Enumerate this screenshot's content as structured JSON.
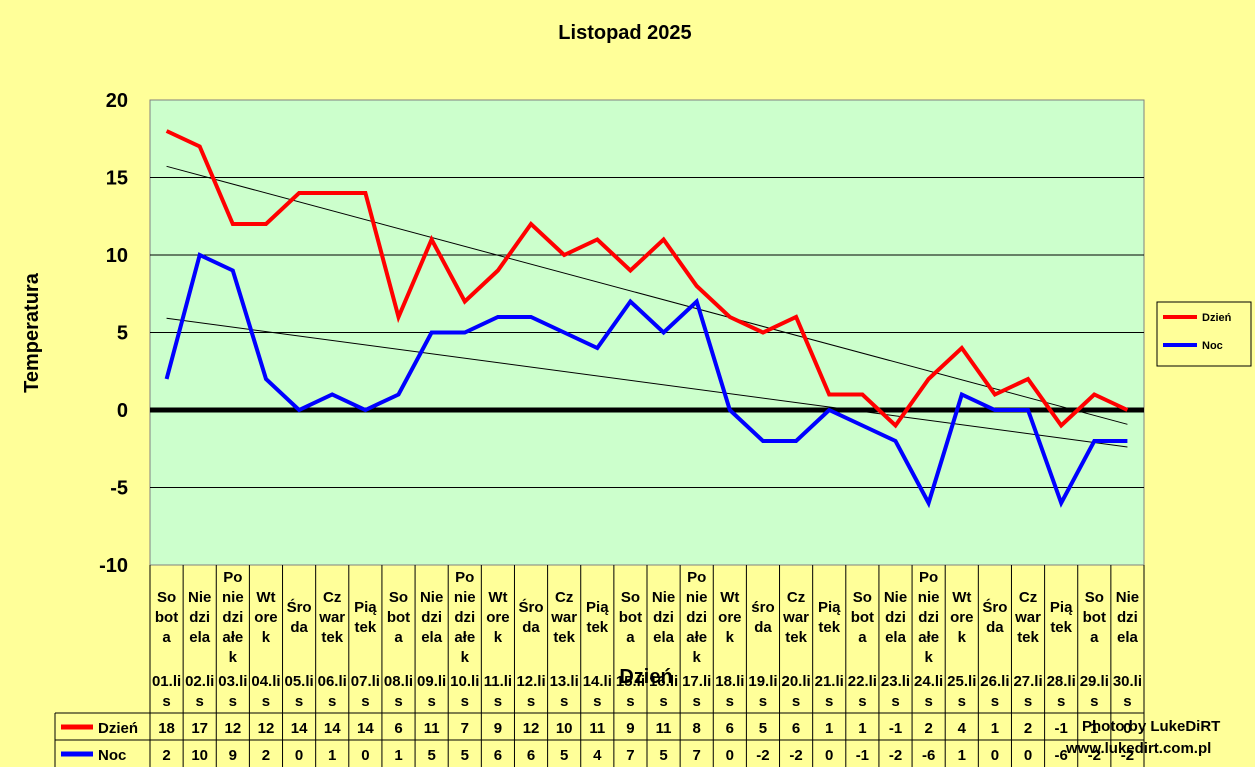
{
  "chart_data": {
    "type": "line",
    "title": "Listopad 2025",
    "xlabel": "Dzień",
    "ylabel": "Temperatura",
    "ylim": [
      -10,
      20
    ],
    "yticks": [
      20,
      15,
      10,
      5,
      0,
      -5,
      -10
    ],
    "grid": true,
    "legend_position": "right",
    "plot_background": "#CCFFCC",
    "page_background": "#FFFF99",
    "categories": [
      {
        "day": "Sobota",
        "date": "01.lis",
        "lines": [
          "So",
          "bot",
          "a"
        ]
      },
      {
        "day": "Niedziela",
        "date": "02.lis",
        "lines": [
          "Nie",
          "dzi",
          "ela"
        ]
      },
      {
        "day": "Poniedziałek",
        "date": "03.lis",
        "lines": [
          "Po",
          "nie",
          "dzi",
          "ałe",
          "k"
        ]
      },
      {
        "day": "Wtorek",
        "date": "04.lis",
        "lines": [
          "Wt",
          "ore",
          "k"
        ]
      },
      {
        "day": "Środa",
        "date": "05.lis",
        "lines": [
          "Śro",
          "da"
        ]
      },
      {
        "day": "Czwartek",
        "date": "06.lis",
        "lines": [
          "Cz",
          "war",
          "tek"
        ]
      },
      {
        "day": "Piątek",
        "date": "07.lis",
        "lines": [
          "Pią",
          "tek"
        ]
      },
      {
        "day": "Sobota",
        "date": "08.lis",
        "lines": [
          "So",
          "bot",
          "a"
        ]
      },
      {
        "day": "Niedziela",
        "date": "09.lis",
        "lines": [
          "Nie",
          "dzi",
          "ela"
        ]
      },
      {
        "day": "Poniedziałek",
        "date": "10.lis",
        "lines": [
          "Po",
          "nie",
          "dzi",
          "ałe",
          "k"
        ]
      },
      {
        "day": "Wtorek",
        "date": "11.lis",
        "lines": [
          "Wt",
          "ore",
          "k"
        ]
      },
      {
        "day": "Środa",
        "date": "12.lis",
        "lines": [
          "Śro",
          "da"
        ]
      },
      {
        "day": "Czwartek",
        "date": "13.lis",
        "lines": [
          "Cz",
          "war",
          "tek"
        ]
      },
      {
        "day": "Piątek",
        "date": "14.lis",
        "lines": [
          "Pią",
          "tek"
        ]
      },
      {
        "day": "Sobota",
        "date": "15.lis",
        "lines": [
          "So",
          "bot",
          "a"
        ]
      },
      {
        "day": "Niedziela",
        "date": "16.lis",
        "lines": [
          "Nie",
          "dzi",
          "ela"
        ]
      },
      {
        "day": "Poniedziałek",
        "date": "17.lis",
        "lines": [
          "Po",
          "nie",
          "dzi",
          "ałe",
          "k"
        ]
      },
      {
        "day": "Wtorek",
        "date": "18.lis",
        "lines": [
          "Wt",
          "ore",
          "k"
        ]
      },
      {
        "day": "środa",
        "date": "19.lis",
        "lines": [
          "śro",
          "da"
        ]
      },
      {
        "day": "Czwartek",
        "date": "20.lis",
        "lines": [
          "Cz",
          "war",
          "tek"
        ]
      },
      {
        "day": "Piątek",
        "date": "21.lis",
        "lines": [
          "Pią",
          "tek"
        ]
      },
      {
        "day": "Sobota",
        "date": "22.lis",
        "lines": [
          "So",
          "bot",
          "a"
        ]
      },
      {
        "day": "Niedziela",
        "date": "23.lis",
        "lines": [
          "Nie",
          "dzi",
          "ela"
        ]
      },
      {
        "day": "Poniedziałek",
        "date": "24.lis",
        "lines": [
          "Po",
          "nie",
          "dzi",
          "ałe",
          "k"
        ]
      },
      {
        "day": "Wtorek",
        "date": "25.lis",
        "lines": [
          "Wt",
          "ore",
          "k"
        ]
      },
      {
        "day": "Środa",
        "date": "26.lis",
        "lines": [
          "Śro",
          "da"
        ]
      },
      {
        "day": "Czwartek",
        "date": "27.lis",
        "lines": [
          "Cz",
          "war",
          "tek"
        ]
      },
      {
        "day": "Piątek",
        "date": "28.lis",
        "lines": [
          "Pią",
          "tek"
        ]
      },
      {
        "day": "Sobota",
        "date": "29.lis",
        "lines": [
          "So",
          "bot",
          "a"
        ]
      },
      {
        "day": "Niedziela",
        "date": "30.lis",
        "lines": [
          "Nie",
          "dzi",
          "ela"
        ]
      }
    ],
    "series": [
      {
        "name": "Dzień",
        "color": "#FF0000",
        "values": [
          18,
          17,
          12,
          12,
          14,
          14,
          14,
          6,
          11,
          7,
          9,
          12,
          10,
          11,
          9,
          11,
          8,
          6,
          5,
          6,
          1,
          1,
          -1,
          2,
          4,
          1,
          2,
          -1,
          1,
          0
        ]
      },
      {
        "name": "Noc",
        "color": "#0000FF",
        "values": [
          2,
          10,
          9,
          2,
          0,
          1,
          0,
          1,
          5,
          5,
          6,
          6,
          5,
          4,
          7,
          5,
          7,
          0,
          -2,
          -2,
          0,
          -1,
          -2,
          -6,
          1,
          0,
          0,
          -6,
          -2,
          -2
        ]
      }
    ],
    "trendlines": [
      {
        "series": "Dzień",
        "type": "linear",
        "color": "#000000"
      },
      {
        "series": "Noc",
        "type": "linear",
        "color": "#000000"
      }
    ],
    "zero_line": {
      "value": 0,
      "color": "#000000"
    }
  },
  "credits": {
    "line1": "Photo by LukeDiRT",
    "line2": "www.lukedirt.com.pl"
  }
}
